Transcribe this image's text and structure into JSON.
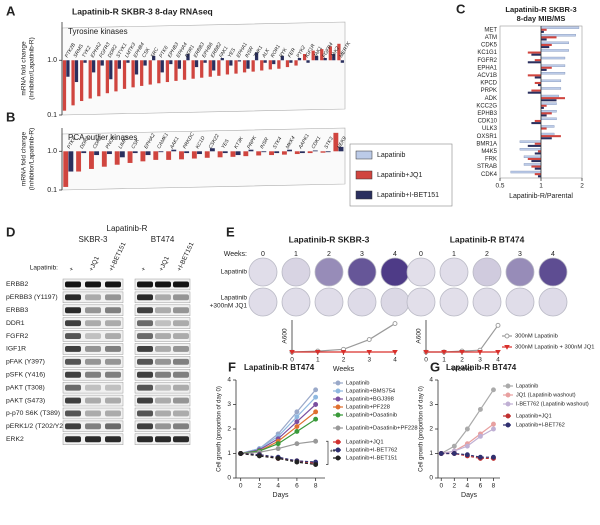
{
  "chart_data": [
    {
      "type": "kinase-bar",
      "label": "A",
      "title": "Lapatinib-R SKBR-3 8-day RNAseq",
      "subtitle": "Tyrosine kinases",
      "y_label": [
        "mRNA fold change",
        "(Inhibitor/Lapatinib-R)"
      ],
      "log": true,
      "categories": [
        "PTK2B",
        "SRMS",
        "TYK2",
        "EPHA2",
        "FGFR3",
        "DDR2",
        "STYK1",
        "LMTK3",
        "EPHB4",
        "CSK",
        "SRC",
        "PTK6",
        "EPHB3",
        "EPHA4",
        "DDR1",
        "ERBB3",
        "EPHB6",
        "ERBB2",
        "FAK1",
        "YES",
        "EPHA1",
        "INSR",
        "TNK1",
        "ALK",
        "ROR1",
        "RYK",
        "FER",
        "PYK2",
        "IGF1R",
        "JAK1",
        "FGFR4",
        "JAK2",
        "MERTK"
      ],
      "series": [
        {
          "color": "#d0453f",
          "values": [
            0.12,
            0.15,
            0.18,
            0.2,
            0.22,
            0.25,
            0.27,
            0.3,
            0.32,
            0.34,
            0.36,
            0.38,
            0.4,
            0.42,
            0.44,
            0.46,
            0.48,
            0.5,
            0.52,
            0.55,
            0.57,
            0.6,
            0.62,
            0.65,
            0.68,
            0.7,
            0.75,
            0.8,
            1.3,
            1.5,
            1.6,
            1.8,
            2.0
          ]
        },
        {
          "color": "#2a2f5e",
          "values": [
            0.5,
            0.4,
            0.9,
            0.6,
            0.8,
            0.45,
            0.7,
            0.9,
            0.55,
            0.8,
            1.2,
            0.6,
            0.85,
            0.7,
            1.3,
            0.75,
            0.9,
            0.65,
            1.1,
            0.8,
            0.95,
            0.7,
            1.4,
            0.9,
            0.85,
            1.2,
            0.9,
            1.1,
            0.9,
            1.2,
            1.1,
            1.3,
            0.9
          ]
        }
      ],
      "ylim": [
        0.1,
        5
      ],
      "yticks": [
        {
          "value": 1,
          "label": "1.0"
        },
        0.1
      ]
    },
    {
      "type": "kinase-bar",
      "label": "B",
      "subtitle": "PCA outlier kinases",
      "y_label": [
        "mRNA fold change",
        "(Inhibitor/Lapatinib-R)"
      ],
      "log": true,
      "categories": [
        "PTK6",
        "DDR1",
        "CDK7",
        "PNCK",
        "LIMK1",
        "CSK",
        "EPHA2",
        "CAMK1",
        "AAK1",
        "PRKDC",
        "KC1D",
        "CSK22",
        "YES",
        "KT3K",
        "PRPK",
        "INSR",
        "STK4",
        "MKK4",
        "AAPK1",
        "CDK1",
        "STK3",
        "NEK9"
      ],
      "series": [
        {
          "color": "#d0453f",
          "values": [
            0.12,
            0.3,
            0.35,
            0.4,
            0.45,
            0.5,
            0.55,
            0.6,
            0.6,
            0.62,
            0.65,
            0.68,
            0.7,
            0.72,
            0.75,
            0.78,
            0.8,
            0.82,
            0.85,
            0.9,
            0.92,
            3.0
          ]
        },
        {
          "color": "#2a2f5e",
          "values": [
            0.3,
            0.9,
            0.8,
            0.85,
            0.7,
            0.9,
            0.8,
            0.95,
            1.1,
            0.9,
            0.85,
            1.2,
            0.9,
            0.8,
            1.1,
            0.95,
            0.9,
            1.1,
            0.9,
            1.05,
            0.95,
            1.3
          ]
        }
      ],
      "ylim": [
        0.1,
        4
      ],
      "yticks": [
        {
          "value": 1,
          "label": "1.0"
        },
        0.1
      ]
    },
    {
      "type": "hbar",
      "label": "C",
      "title": [
        "Lapatinib-R SKBR-3",
        "8-day MIB/MS"
      ],
      "x_label": "Lapatinib-R/Parental",
      "log": true,
      "categories": [
        "MET",
        "ATM",
        "CDK5",
        "KC1G1",
        "FGFR2",
        "EPHA1",
        "ACV1B",
        "KPCD",
        "PRPK",
        "ADK",
        "KCC2G",
        "EPHB3",
        "CDK10",
        "ULK3",
        "OXSR1",
        "BMR1A",
        "M4K5",
        "FRK",
        "STRAB",
        "CDK4"
      ],
      "series": [
        {
          "name": "Lapatinib",
          "color": "#bccbe8",
          "values": [
            1.9,
            1.8,
            1.6,
            1.6,
            1.5,
            1.5,
            1.5,
            1.4,
            1.4,
            1.35,
            1.3,
            1.3,
            1.3,
            1.25,
            1.25,
            0.7,
            0.7,
            0.75,
            0.75,
            0.6
          ]
        },
        {
          "name": "Lapatinib+JQ1",
          "color": "#d0453f",
          "values": [
            1.1,
            1.3,
            1.2,
            0.8,
            0.9,
            1.2,
            0.8,
            0.9,
            0.85,
            1.5,
            1.1,
            1.2,
            0.9,
            1.1,
            1.4,
            0.9,
            0.95,
            0.8,
            0.85,
            0.9
          ]
        },
        {
          "name": "Lapatinib+I-BET151",
          "color": "#2a2f5e",
          "values": [
            1.05,
            1.1,
            1.15,
            0.85,
            0.8,
            1.1,
            0.9,
            0.95,
            0.8,
            1.3,
            1.05,
            1.1,
            0.85,
            1.0,
            1.2,
            0.8,
            0.9,
            0.85,
            0.9,
            0.95
          ]
        }
      ],
      "xlim": [
        0.5,
        2
      ],
      "xticks": [
        0.5,
        1,
        2
      ]
    },
    {
      "type": "line",
      "x_label": "Weeks",
      "y_label": "A600",
      "x": [
        0,
        1,
        2,
        3,
        4
      ],
      "xlim": [
        0,
        4
      ],
      "xticks": [
        0,
        1,
        2,
        3,
        4
      ],
      "ylim": [
        0,
        18
      ],
      "series": [
        {
          "name": "300nM Lapatinib",
          "color": "#9a9a9a",
          "marker": "circle",
          "values": [
            0,
            0.5,
            1.5,
            7,
            16
          ]
        },
        {
          "name": "300nM Lapatinib + 300nM JQ1",
          "color": "#d9302c",
          "marker": "triangle",
          "values": [
            0,
            0,
            0,
            0,
            0
          ]
        }
      ]
    },
    {
      "type": "line",
      "x_label": "Weeks",
      "y_label": "A600",
      "x": [
        0,
        1,
        2,
        3,
        4
      ],
      "xlim": [
        0,
        4
      ],
      "xticks": [
        0,
        1,
        2,
        3,
        4
      ],
      "ylim": [
        0,
        18
      ],
      "series": [
        {
          "color": "#9a9a9a",
          "marker": "circle",
          "values": [
            0,
            0,
            0.5,
            1,
            15
          ]
        },
        {
          "color": "#d9302c",
          "marker": "triangle",
          "values": [
            0,
            0,
            0,
            0,
            0
          ]
        }
      ]
    },
    {
      "type": "line",
      "label": "F",
      "title": "Lapatinib-R BT474",
      "x_label": "Days",
      "y_label": "Cell growth (proportion of day 0)",
      "x": [
        0,
        2,
        4,
        6,
        8
      ],
      "xlim": [
        -0.5,
        9
      ],
      "xticks": [
        0,
        2,
        4,
        6,
        8
      ],
      "ylim": [
        0,
        4
      ],
      "yticks": [
        0,
        1,
        2,
        3,
        4
      ],
      "annotation": "**",
      "series": [
        {
          "name": "Lapatinib",
          "color": "#9aa9c9",
          "values": [
            1,
            1.2,
            1.8,
            2.7,
            3.6
          ]
        },
        {
          "name": "Lapatinib+BMS754",
          "color": "#8fb8e0",
          "values": [
            1,
            1.2,
            1.7,
            2.5,
            3.3
          ]
        },
        {
          "name": "Lapatinib+BGJ398",
          "color": "#7b4fa0",
          "values": [
            1,
            1.15,
            1.6,
            2.3,
            3.0
          ]
        },
        {
          "name": "Lapatinib+PF228",
          "color": "#e07030",
          "values": [
            1,
            1.1,
            1.5,
            2.1,
            2.7
          ]
        },
        {
          "name": "Lapatinib+Dasatinib",
          "color": "#3a9a3a",
          "values": [
            1,
            1.1,
            1.4,
            1.9,
            2.4
          ]
        },
        {
          "name": "Lapatinib+Dasatinib+PF228",
          "color": "#999999",
          "values": [
            1,
            1.05,
            1.2,
            1.4,
            1.5
          ]
        },
        {
          "name": "Lapatinib+JQ1",
          "color": "#d03030",
          "dash": true,
          "values": [
            1,
            0.95,
            0.8,
            0.7,
            0.6
          ]
        },
        {
          "name": "Lapatinib+I-BET762",
          "color": "#303070",
          "dash": true,
          "values": [
            1,
            0.95,
            0.85,
            0.7,
            0.65
          ]
        },
        {
          "name": "Lapatinib+I-BET151",
          "color": "#222222",
          "dash": true,
          "values": [
            1,
            0.9,
            0.8,
            0.65,
            0.55
          ]
        }
      ]
    },
    {
      "type": "line",
      "label": "G",
      "title": "Lapatinib-R BT474",
      "x_label": "Days",
      "y_label": "Cell growth (proportion of day 0)",
      "x": [
        0,
        2,
        4,
        6,
        8
      ],
      "xlim": [
        -0.5,
        9
      ],
      "xticks": [
        0,
        2,
        4,
        6,
        8
      ],
      "ylim": [
        0,
        4
      ],
      "yticks": [
        0,
        1,
        2,
        3,
        4
      ],
      "series": [
        {
          "name": "Lapatinib",
          "color": "#aaaaaa",
          "values": [
            1,
            1.3,
            2,
            2.8,
            3.6
          ]
        },
        {
          "name": "JQ1 (Lapatinib washout)",
          "color": "#e8a0a0",
          "values": [
            1,
            1.1,
            1.4,
            1.8,
            2.2
          ]
        },
        {
          "name": "I-BET762 (Lapatinib washout)",
          "color": "#c0b0d4",
          "values": [
            1,
            1.1,
            1.3,
            1.7,
            2.0
          ]
        },
        {
          "name": "Lapatinib+JQ1",
          "color": "#c03030",
          "dash": true,
          "values": [
            1,
            1,
            0.9,
            0.8,
            0.8
          ]
        },
        {
          "name": "Lapatinib+I-BET762",
          "color": "#303070",
          "dash": true,
          "values": [
            1,
            1,
            0.95,
            0.85,
            0.85
          ]
        }
      ]
    }
  ],
  "blot": {
    "label": "D",
    "title": "Lapatinib-R",
    "cell_lines": [
      "SKBR-3",
      "BT474"
    ],
    "treatment_label": "Lapatinib:",
    "lanes": [
      "+",
      "+JQ1",
      "+I-BET151"
    ],
    "proteins": [
      "ERBB2",
      "pERBB3 (Y1197)",
      "ERBB3",
      "DDR1",
      "FGFR2",
      "IGF1R",
      "pFAK (Y397)",
      "pSFK (Y416)",
      "pAKT (T308)",
      "pAKT (S473)",
      "p-p70 S6K (T389)",
      "pERK1/2 (T202/Y204)",
      "ERK2"
    ]
  },
  "plates": {
    "label": "E",
    "titles": [
      "Lapatinib-R SKBR-3",
      "Lapatinib-R BT474"
    ],
    "weeks_label": "Weeks:",
    "weeks": [
      0,
      1,
      2,
      3,
      4
    ],
    "rows": [
      [
        "Lapatinib"
      ],
      [
        "Lapatinib",
        "+300nM JQ1"
      ]
    ]
  }
}
